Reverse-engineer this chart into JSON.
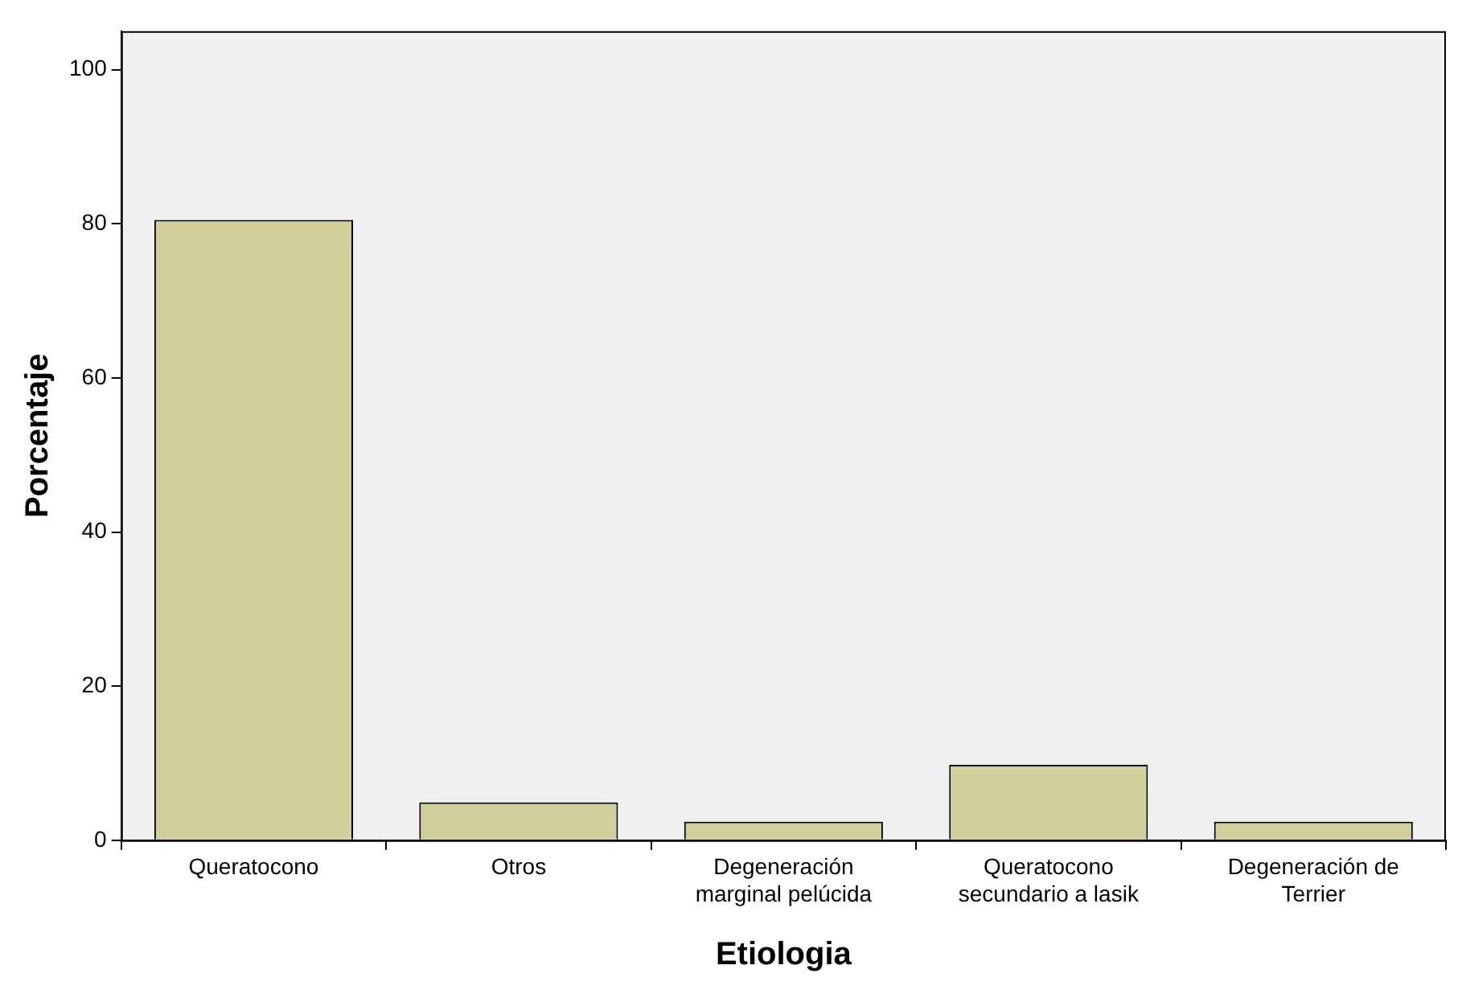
{
  "chart_data": {
    "type": "bar",
    "xlabel": "Etiologia",
    "ylabel": "Porcentaje",
    "categories": [
      "Queratocono",
      "Otros",
      "Degeneración marginal pelúcida",
      "Queratocono secundario a lasik",
      "Degeneración de Terrier"
    ],
    "values": [
      80.5,
      4.9,
      2.4,
      9.8,
      2.4
    ],
    "color": "#d3cf9b",
    "ylim": [
      0,
      105
    ],
    "yticks": [
      0,
      20,
      40,
      60,
      80,
      100
    ],
    "grid": false
  }
}
